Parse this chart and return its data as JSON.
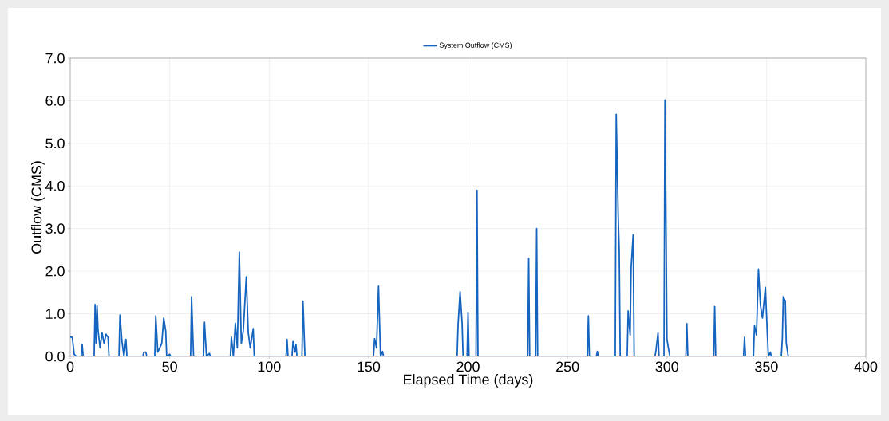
{
  "chart_data": {
    "type": "line",
    "xlabel": "Elapsed Time (days)",
    "ylabel": "Outflow (CMS)",
    "x": [
      0,
      1,
      2,
      3,
      5.5,
      6,
      6.5,
      12,
      12.5,
      13,
      13.5,
      14,
      15,
      16,
      17,
      18,
      19,
      19.5,
      24.5,
      25,
      26,
      27,
      28,
      28.5,
      36.5,
      37,
      38,
      38.5,
      42.5,
      43,
      44,
      46,
      47,
      48,
      48.5,
      50,
      50.5,
      60.5,
      61,
      62,
      67,
      67.5,
      68.5,
      70,
      70.5,
      80.5,
      81,
      82,
      83,
      84,
      85,
      86,
      87,
      88.5,
      89.5,
      90.5,
      92,
      92.5,
      108.5,
      109,
      109.5,
      111.5,
      112,
      113,
      113.5,
      114,
      116.5,
      117,
      118,
      152.5,
      153,
      154,
      155,
      156,
      157,
      157.5,
      194.5,
      195,
      196,
      197,
      197.5,
      199.5,
      200,
      200.5,
      204,
      204.5,
      205,
      230,
      230.5,
      231,
      234,
      234.5,
      235,
      260,
      260.5,
      261,
      264.5,
      265,
      265.5,
      274,
      274.5,
      275.5,
      276,
      276.5,
      280,
      280.5,
      281.5,
      282,
      283,
      283.5,
      294,
      294.5,
      295.5,
      296,
      298.5,
      299,
      300,
      301,
      301.5,
      309.5,
      310,
      310.5,
      323.5,
      324,
      324.5,
      338.5,
      339,
      339.5,
      343.5,
      344,
      345,
      346,
      347,
      348,
      349.5,
      350.5,
      351,
      352,
      352.5,
      357.5,
      358,
      358.5,
      359.5,
      360,
      361
    ],
    "series": [
      {
        "name": "System Outflow (CMS)",
        "color": "#1565c0",
        "values": [
          0.45,
          0.45,
          0.05,
          0,
          0,
          0.28,
          0,
          0,
          1.22,
          0.3,
          1.18,
          0.6,
          0.2,
          0.55,
          0.3,
          0.52,
          0.45,
          0,
          0,
          0.97,
          0.35,
          0,
          0.4,
          0,
          0,
          0.1,
          0.1,
          0,
          0,
          0.95,
          0.1,
          0.3,
          0.9,
          0.6,
          0,
          0.05,
          0,
          0,
          1.4,
          0,
          0,
          0.8,
          0,
          0.07,
          0,
          0,
          0.45,
          0,
          0.78,
          0.2,
          2.45,
          0.3,
          0.6,
          1.87,
          0.55,
          0.2,
          0.65,
          0,
          0,
          0.4,
          0,
          0,
          0.35,
          0.1,
          0.28,
          0,
          0,
          1.3,
          0,
          0,
          0.42,
          0.2,
          1.65,
          0,
          0.12,
          0,
          0,
          0.75,
          1.52,
          0.8,
          0,
          0,
          1.03,
          0,
          0,
          3.9,
          0,
          0,
          2.3,
          0,
          0,
          3.0,
          0,
          0,
          0.95,
          0,
          0,
          0.12,
          0,
          0,
          5.68,
          3.3,
          2.5,
          0,
          0,
          1.07,
          0.5,
          2.1,
          2.85,
          0,
          0,
          0.15,
          0.55,
          0,
          0,
          6.02,
          0.4,
          0.12,
          0,
          0,
          0.77,
          0,
          0,
          1.17,
          0,
          0,
          0.45,
          0,
          0,
          0.72,
          0.5,
          2.05,
          1.2,
          0.9,
          1.62,
          0.5,
          0,
          0.1,
          0,
          0,
          0.4,
          1.4,
          1.3,
          0.3,
          0
        ]
      }
    ],
    "xlim": [
      0,
      400
    ],
    "xticks": [
      0,
      50,
      100,
      150,
      200,
      250,
      300,
      350,
      400
    ],
    "ylim": [
      0,
      7
    ],
    "yticks": [
      {
        "value": 0,
        "label": "0.0"
      },
      {
        "value": 1,
        "label": "1.0"
      },
      {
        "value": 2,
        "label": "2.0"
      },
      {
        "value": 3,
        "label": "3.0"
      },
      {
        "value": 4,
        "label": "4.0"
      },
      {
        "value": 5,
        "label": "5.0"
      },
      {
        "value": 6,
        "label": "6.0"
      },
      {
        "value": 7,
        "label": "7.0"
      }
    ],
    "grid": true,
    "legend": "top",
    "marker": "none",
    "line_style": "solid"
  }
}
